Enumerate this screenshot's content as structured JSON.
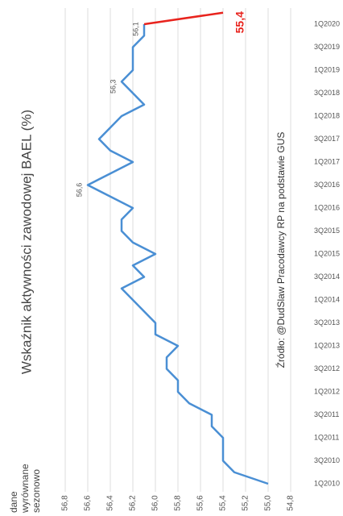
{
  "chart_data": {
    "type": "line",
    "title": "Wskaźnik aktywności zawodowej BAEL (%)",
    "note": "dane wyrównane sezonowo",
    "source": "Źródło: @DudSlaw Pracodawcy RP na podstawie GUS",
    "categories": [
      "1Q2010",
      null,
      "3Q2010",
      null,
      "1Q2011",
      null,
      "3Q2011",
      null,
      "1Q2012",
      null,
      "3Q2012",
      null,
      "1Q2013",
      null,
      "3Q2013",
      null,
      "1Q2014",
      null,
      "3Q2014",
      null,
      "1Q2015",
      null,
      "3Q2015",
      null,
      "1Q2016",
      null,
      "3Q2016",
      null,
      "1Q2017",
      null,
      "3Q2017",
      null,
      "1Q2018",
      null,
      "3Q2018",
      null,
      "1Q2019",
      null,
      "3Q2019",
      null,
      "1Q2020",
      null
    ],
    "series": [
      {
        "color": "#4a8fd4",
        "values": [
          55.0,
          55.3,
          55.4,
          55.4,
          55.4,
          55.5,
          55.5,
          55.7,
          55.8,
          55.8,
          55.9,
          55.9,
          55.8,
          56.0,
          56.0,
          56.1,
          56.2,
          56.3,
          56.1,
          56.2,
          56.0,
          56.2,
          56.3,
          56.3,
          56.2,
          56.4,
          56.6,
          56.4,
          56.2,
          56.4,
          56.5,
          56.4,
          56.3,
          56.1,
          56.2,
          56.3,
          56.2,
          56.2,
          56.2,
          56.1,
          56.1,
          null
        ],
        "value_labels": [
          null,
          null,
          null,
          null,
          null,
          null,
          null,
          null,
          null,
          null,
          null,
          null,
          null,
          null,
          null,
          null,
          null,
          null,
          null,
          null,
          null,
          null,
          null,
          null,
          null,
          null,
          "56,6",
          null,
          null,
          null,
          null,
          null,
          null,
          null,
          null,
          "56,3",
          null,
          null,
          null,
          null,
          "56,1",
          null
        ]
      },
      {
        "color": "#e8231d",
        "values": [
          null,
          null,
          null,
          null,
          null,
          null,
          null,
          null,
          null,
          null,
          null,
          null,
          null,
          null,
          null,
          null,
          null,
          null,
          null,
          null,
          null,
          null,
          null,
          null,
          null,
          null,
          null,
          null,
          null,
          null,
          null,
          null,
          null,
          null,
          null,
          null,
          null,
          null,
          null,
          null,
          56.1,
          55.4
        ],
        "value_labels": [
          null,
          null,
          null,
          null,
          null,
          null,
          null,
          null,
          null,
          null,
          null,
          null,
          null,
          null,
          null,
          null,
          null,
          null,
          null,
          null,
          null,
          null,
          null,
          null,
          null,
          null,
          null,
          null,
          null,
          null,
          null,
          null,
          null,
          null,
          null,
          null,
          null,
          null,
          null,
          null,
          null,
          "55,4"
        ]
      }
    ],
    "ylim": [
      54.8,
      56.8
    ],
    "yticks": [
      {
        "value": 54.8,
        "label": "54,8"
      },
      {
        "value": 55.0,
        "label": "55,0"
      },
      {
        "value": 55.2,
        "label": "55,2"
      },
      {
        "value": 55.4,
        "label": "55,4"
      },
      {
        "value": 55.6,
        "label": "55,6"
      },
      {
        "value": 55.8,
        "label": "55,8"
      },
      {
        "value": 56.0,
        "label": "56,0"
      },
      {
        "value": 56.2,
        "label": "56,2"
      },
      {
        "value": 56.4,
        "label": "56,4"
      },
      {
        "value": 56.6,
        "label": "56,6"
      },
      {
        "value": 56.8,
        "label": "56,8"
      }
    ],
    "grid": true
  }
}
